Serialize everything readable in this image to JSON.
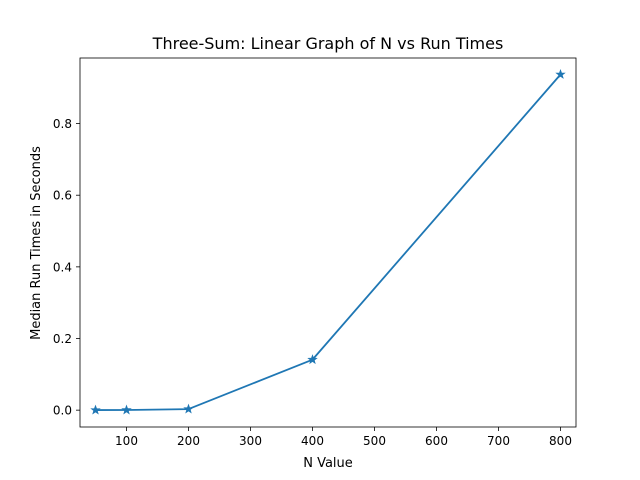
{
  "chart_data": {
    "type": "line",
    "title": "Three-Sum: Linear Graph of N vs Run Times",
    "xlabel": "N Value",
    "ylabel": "Median Run Times in Seconds",
    "xlim": [
      25,
      825
    ],
    "ylim": [
      -0.047,
      0.983
    ],
    "xticks": [
      100,
      200,
      300,
      400,
      500,
      600,
      700,
      800
    ],
    "xtick_labels": [
      "100",
      "200",
      "300",
      "400",
      "500",
      "600",
      "700",
      "800"
    ],
    "yticks": [
      0.0,
      0.2,
      0.4,
      0.6,
      0.8
    ],
    "ytick_labels": [
      "0.0",
      "0.2",
      "0.4",
      "0.6",
      "0.8"
    ],
    "grid": false,
    "legend": false,
    "series": [
      {
        "color": "#1f77b4",
        "marker": "star",
        "x": [
          50,
          100,
          200,
          400,
          800
        ],
        "y": [
          0.0003,
          0.0004,
          0.003,
          0.141,
          0.937
        ]
      }
    ]
  }
}
